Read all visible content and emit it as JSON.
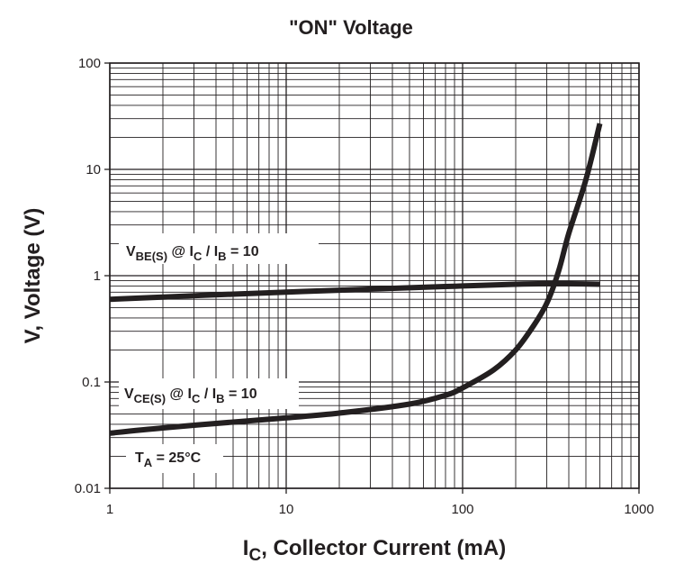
{
  "chart_data": {
    "type": "line",
    "title": "\"ON\" Voltage",
    "xlabel": {
      "main": "I",
      "sub": "C",
      "rest": ", Collector Current (mA)"
    },
    "ylabel": "V, Voltage (V)",
    "x_scale": "log",
    "y_scale": "log",
    "xlim": [
      1,
      1000
    ],
    "ylim": [
      0.01,
      100
    ],
    "grid": true,
    "x_ticks": [
      {
        "value": 1,
        "label": "1"
      },
      {
        "value": 10,
        "label": "10"
      },
      {
        "value": 100,
        "label": "100"
      },
      {
        "value": 1000,
        "label": "1000"
      }
    ],
    "y_ticks": [
      {
        "value": 0.01,
        "label": "0.01"
      },
      {
        "value": 0.1,
        "label": "0.1"
      },
      {
        "value": 1,
        "label": "1"
      },
      {
        "value": 10,
        "label": "10"
      },
      {
        "value": 100,
        "label": "100"
      }
    ],
    "series": [
      {
        "id": "vbe",
        "x": [
          1,
          2,
          5,
          10,
          20,
          50,
          100,
          200,
          300,
          400,
          600
        ],
        "y": [
          0.6,
          0.63,
          0.67,
          0.7,
          0.73,
          0.77,
          0.8,
          0.83,
          0.84,
          0.84,
          0.83
        ]
      },
      {
        "id": "vce",
        "x": [
          1,
          2,
          5,
          10,
          20,
          50,
          80,
          100,
          150,
          200,
          250,
          300,
          350,
          400,
          500,
          600
        ],
        "y": [
          0.033,
          0.037,
          0.042,
          0.046,
          0.051,
          0.062,
          0.075,
          0.088,
          0.13,
          0.2,
          0.33,
          0.55,
          1.1,
          2.5,
          8,
          27
        ]
      }
    ],
    "annotations": [
      {
        "id": "vbe-label",
        "main": "V",
        "sub": "BE(S)",
        "mid": " @ I",
        "sub2": "C",
        "mid2": " / I",
        "sub3": "B",
        "rest": " = 10"
      },
      {
        "id": "vce-label",
        "main": "V",
        "sub": "CE(S)",
        "mid": " @ I",
        "sub2": "C",
        "mid2": " / I",
        "sub3": "B",
        "rest": " = 10"
      },
      {
        "id": "ta-label",
        "main": "T",
        "sub": "A",
        "rest": " = 25°C"
      }
    ]
  }
}
